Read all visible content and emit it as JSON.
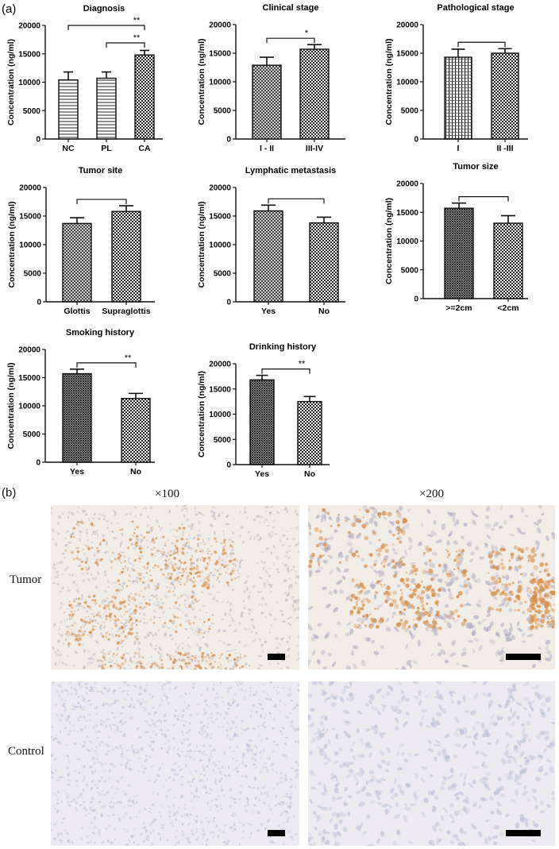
{
  "figure": {
    "panel_a_label": "(a)",
    "panel_b_label": "(b)",
    "ihc": {
      "columns": [
        "×100",
        "×200"
      ],
      "rows": [
        "Tumor",
        "Control"
      ],
      "stain_color": "#d9904a",
      "counterstain_color": "#b9bdd8",
      "background_color": "#f1ece6"
    }
  },
  "chart_data": [
    {
      "type": "bar",
      "title": "Diagnosis",
      "ylabel": "Concentration (ng/ml)",
      "ylim": [
        0,
        20000
      ],
      "yticks": [
        "0",
        "5000",
        "10000",
        "15000",
        "20000"
      ],
      "categories": [
        "NC",
        "PL",
        "CA"
      ],
      "values": [
        10400,
        10700,
        14800
      ],
      "errors": [
        1400,
        1100,
        800
      ],
      "patterns": [
        "hlines",
        "hlines",
        "checker"
      ],
      "significance": [
        {
          "from": 0,
          "to": 2,
          "label": "**"
        },
        {
          "from": 1,
          "to": 2,
          "label": "**"
        }
      ]
    },
    {
      "type": "bar",
      "title": "Clinical stage",
      "ylabel": "Concentration (ng/ml)",
      "ylim": [
        0,
        20000
      ],
      "yticks": [
        "0",
        "5000",
        "10000",
        "15000",
        "20000"
      ],
      "categories": [
        "I - II",
        "III-IV"
      ],
      "values": [
        12900,
        15700
      ],
      "errors": [
        1400,
        800
      ],
      "patterns": [
        "crosshatch",
        "checker"
      ],
      "significance": [
        {
          "from": 0,
          "to": 1,
          "label": "*"
        }
      ]
    },
    {
      "type": "bar",
      "title": "Pathological stage",
      "ylabel": "Concentration (ng/ml)",
      "ylim": [
        0,
        20000
      ],
      "yticks": [
        "0",
        "5000",
        "10000",
        "15000",
        "20000"
      ],
      "categories": [
        "I",
        "II -III"
      ],
      "values": [
        14300,
        15000
      ],
      "errors": [
        1400,
        800
      ],
      "patterns": [
        "vdots",
        "checker"
      ],
      "significance": [
        {
          "from": 0,
          "to": 1,
          "label": ""
        }
      ]
    },
    {
      "type": "bar",
      "title": "Tumor site",
      "ylabel": "Concentration (ng/ml)",
      "ylim": [
        0,
        20000
      ],
      "yticks": [
        "0",
        "5000",
        "10000",
        "15000",
        "20000"
      ],
      "categories": [
        "Glottis",
        "Supraglottis"
      ],
      "values": [
        13700,
        15800
      ],
      "errors": [
        1000,
        1000
      ],
      "patterns": [
        "crosshatch",
        "checker"
      ],
      "significance": [
        {
          "from": 0,
          "to": 1,
          "label": ""
        }
      ]
    },
    {
      "type": "bar",
      "title": "Lymphatic metastasis",
      "ylabel": "Concentration (ng/ml)",
      "ylim": [
        0,
        20000
      ],
      "yticks": [
        "0",
        "5000",
        "10000",
        "15000",
        "20000"
      ],
      "categories": [
        "Yes",
        "No"
      ],
      "values": [
        15900,
        13800
      ],
      "errors": [
        1000,
        1000
      ],
      "patterns": [
        "crosshatch",
        "checker"
      ],
      "significance": [
        {
          "from": 0,
          "to": 1,
          "label": ""
        }
      ]
    },
    {
      "type": "bar",
      "title": "Tumor size",
      "ylabel": "Concentration (ng/ml)",
      "ylim": [
        0,
        20000
      ],
      "yticks": [
        "0",
        "5000",
        "10000",
        "15000",
        "20000"
      ],
      "categories": [
        ">=2cm",
        "<2cm"
      ],
      "values": [
        15700,
        13100
      ],
      "errors": [
        900,
        1300
      ],
      "patterns": [
        "dense",
        "checker"
      ],
      "significance": [
        {
          "from": 0,
          "to": 1,
          "label": ""
        }
      ]
    },
    {
      "type": "bar",
      "title": "Smoking history",
      "ylabel": "Concentration (ng/ml)",
      "ylim": [
        0,
        20000
      ],
      "yticks": [
        "0",
        "5000",
        "10000",
        "15000",
        "20000"
      ],
      "categories": [
        "Yes",
        "No"
      ],
      "values": [
        15700,
        11300
      ],
      "errors": [
        800,
        900
      ],
      "patterns": [
        "dense",
        "checker"
      ],
      "significance": [
        {
          "from": 0,
          "to": 1,
          "label": "**"
        }
      ]
    },
    {
      "type": "bar",
      "title": "Drinking history",
      "ylabel": "Concentration (ng/ml)",
      "ylim": [
        0,
        20000
      ],
      "yticks": [
        "0",
        "5000",
        "10000",
        "15000",
        "20000"
      ],
      "categories": [
        "Yes",
        "No"
      ],
      "values": [
        16800,
        12500
      ],
      "errors": [
        900,
        1000
      ],
      "patterns": [
        "dense",
        "checker"
      ],
      "significance": [
        {
          "from": 0,
          "to": 1,
          "label": "**"
        }
      ]
    }
  ]
}
